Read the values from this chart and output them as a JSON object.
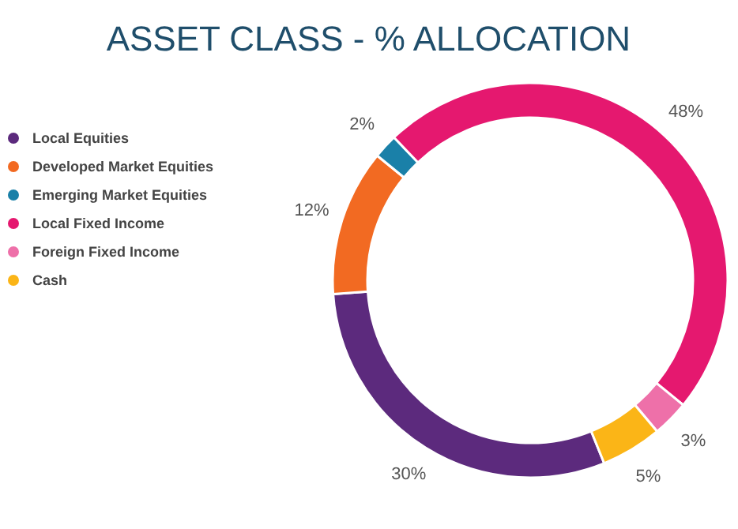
{
  "chart_data": {
    "type": "donut",
    "title": "ASSET CLASS - % ALLOCATION",
    "categories": [
      "Local Equities",
      "Developed Market Equities",
      "Emerging  Market Equities",
      "Local Fixed Income",
      "Foreign Fixed Income",
      "Cash"
    ],
    "values": [
      30,
      12,
      2,
      48,
      3,
      5
    ],
    "colors": [
      "#5c2a7d",
      "#f26a22",
      "#1a80a8",
      "#e5186f",
      "#ee70a9",
      "#fbb517"
    ],
    "value_labels": [
      "30%",
      "12%",
      "2%",
      "48%",
      "3%",
      "5%"
    ],
    "legend": "left"
  }
}
